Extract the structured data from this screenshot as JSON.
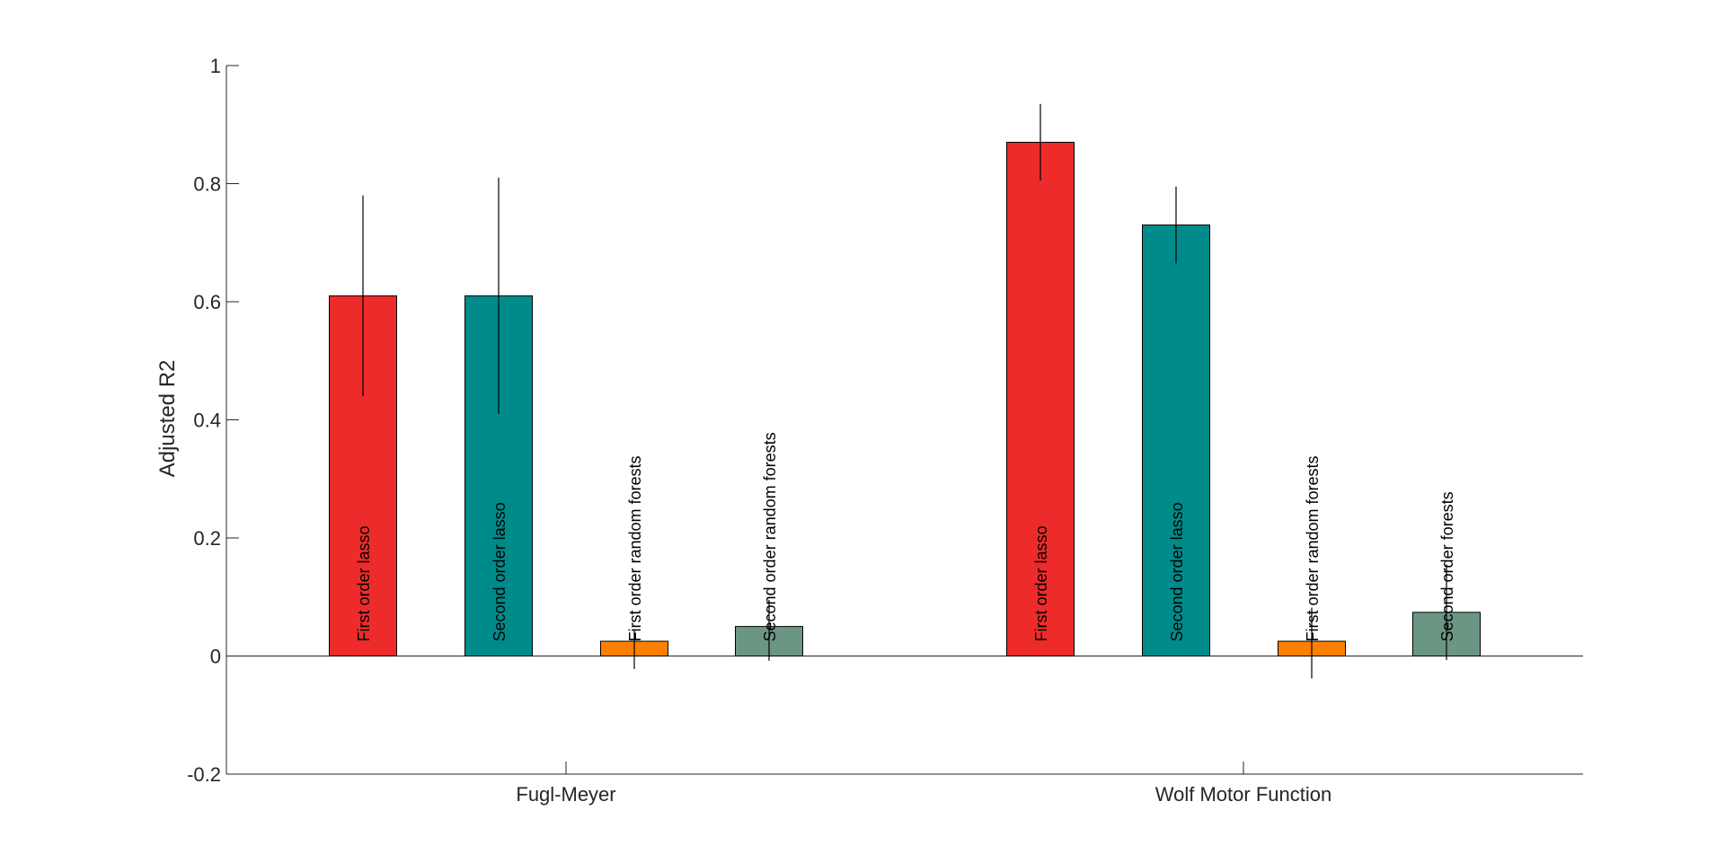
{
  "chart_data": {
    "type": "bar",
    "title": "",
    "xlabel": "",
    "ylabel": "Adjusted R2",
    "ylim": [
      -0.2,
      1
    ],
    "yticks": [
      -0.2,
      0,
      0.2,
      0.4,
      0.6,
      0.8,
      1
    ],
    "ytick_labels": [
      "-0.2",
      "0",
      "0.2",
      "0.4",
      "0.6",
      "0.8",
      "1"
    ],
    "grid": false,
    "legend": "none",
    "categories": [
      "Fugl-Meyer",
      "Wolf Motor Function"
    ],
    "groups": [
      {
        "category": "Fugl-Meyer",
        "bars": [
          {
            "label": "First order lasso",
            "value": 0.61,
            "err_low": 0.44,
            "err_high": 0.78,
            "color": "#EE2B2B"
          },
          {
            "label": "Second order lasso",
            "value": 0.61,
            "err_low": 0.41,
            "err_high": 0.81,
            "color": "#008B8B"
          },
          {
            "label": "First order random forests",
            "value": 0.025,
            "err_low": -0.022,
            "err_high": 0.045,
            "color": "#FF8000"
          },
          {
            "label": "Second order random forests",
            "value": 0.05,
            "err_low": -0.008,
            "err_high": 0.095,
            "color": "#6B9684"
          }
        ]
      },
      {
        "category": "Wolf Motor Function",
        "bars": [
          {
            "label": "First order lasso",
            "value": 0.87,
            "err_low": 0.805,
            "err_high": 0.935,
            "color": "#EE2B2B"
          },
          {
            "label": "Second order lasso",
            "value": 0.73,
            "err_low": 0.665,
            "err_high": 0.795,
            "color": "#008B8B"
          },
          {
            "label": "First order random forests",
            "value": 0.025,
            "err_low": -0.038,
            "err_high": 0.082,
            "color": "#FF8000"
          },
          {
            "label": "Second order forests",
            "value": 0.074,
            "err_low": -0.007,
            "err_high": 0.155,
            "color": "#6B9684"
          }
        ]
      }
    ]
  }
}
